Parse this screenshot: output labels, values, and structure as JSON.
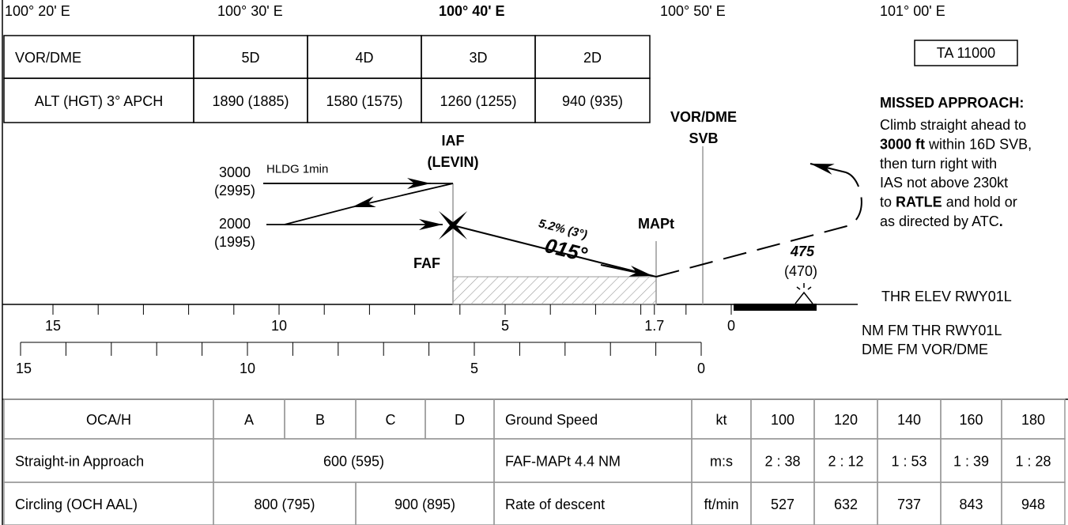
{
  "longitudes": [
    "100° 20' E",
    "100° 30' E",
    "100° 40' E",
    "100° 50' E",
    "101° 00' E"
  ],
  "vor_dme_table": {
    "rows": [
      [
        "VOR/DME",
        "5D",
        "4D",
        "3D",
        "2D"
      ],
      [
        "ALT (HGT) 3° APCH",
        "1890 (1885)",
        "1580 (1575)",
        "1260 (1255)",
        "940 (935)"
      ]
    ]
  },
  "ta": "TA 11000",
  "missed_approach": {
    "title": "MISSED APPROACH:",
    "lines": [
      [
        {
          "text": "Climb straight ahead to"
        }
      ],
      [
        {
          "text": "3000 ft",
          "bold": true
        },
        {
          "text": " within 16D SVB,"
        }
      ],
      [
        {
          "text": "then turn right with"
        }
      ],
      [
        {
          "text": "IAS not above 230kt"
        }
      ],
      [
        {
          "text": "to "
        },
        {
          "text": "RATLE",
          "bold": true
        },
        {
          "text": " and hold or"
        }
      ],
      [
        {
          "text": "as directed by ATC"
        },
        {
          "text": ".",
          "bold": true
        }
      ]
    ]
  },
  "profile": {
    "iaf": [
      "IAF",
      "(LEVIN)"
    ],
    "faf": "FAF",
    "mapt": "MAPt",
    "vor": [
      "VOR/DME",
      "SVB"
    ],
    "holding": {
      "upper": [
        "3000",
        "(2995)"
      ],
      "lower": [
        "2000",
        "(1995)"
      ],
      "note": "HLDG 1min"
    },
    "gradient": "5.2% (3°)",
    "course": "015°",
    "obstacle": [
      "475",
      "(470)"
    ],
    "threshold": "THR ELEV RWY01L"
  },
  "nm_scale": {
    "labels": [
      15,
      10,
      5,
      1.7,
      0
    ],
    "caption": "NM FM THR RWY01L"
  },
  "dme_scale": {
    "labels": [
      15,
      10,
      5,
      0
    ],
    "caption": "DME FM VOR/DME"
  },
  "oca_table": {
    "rows": [
      [
        "OCA/H",
        "A",
        "B",
        "C",
        "D"
      ],
      [
        "Straight-in Approach",
        "600 (595)"
      ],
      [
        "Circling (OCH AAL)",
        "800 (795)",
        "900 (895)"
      ]
    ]
  },
  "speed_table": {
    "rows": [
      [
        "Ground Speed",
        "kt",
        "100",
        "120",
        "140",
        "160",
        "180"
      ],
      [
        "FAF-MAPt 4.4 NM",
        "m:s",
        "2 : 38",
        "2 : 12",
        "1 : 53",
        "1 : 39",
        "1 : 28"
      ],
      [
        "Rate of descent",
        "ft/min",
        "527",
        "632",
        "737",
        "843",
        "948"
      ]
    ]
  }
}
